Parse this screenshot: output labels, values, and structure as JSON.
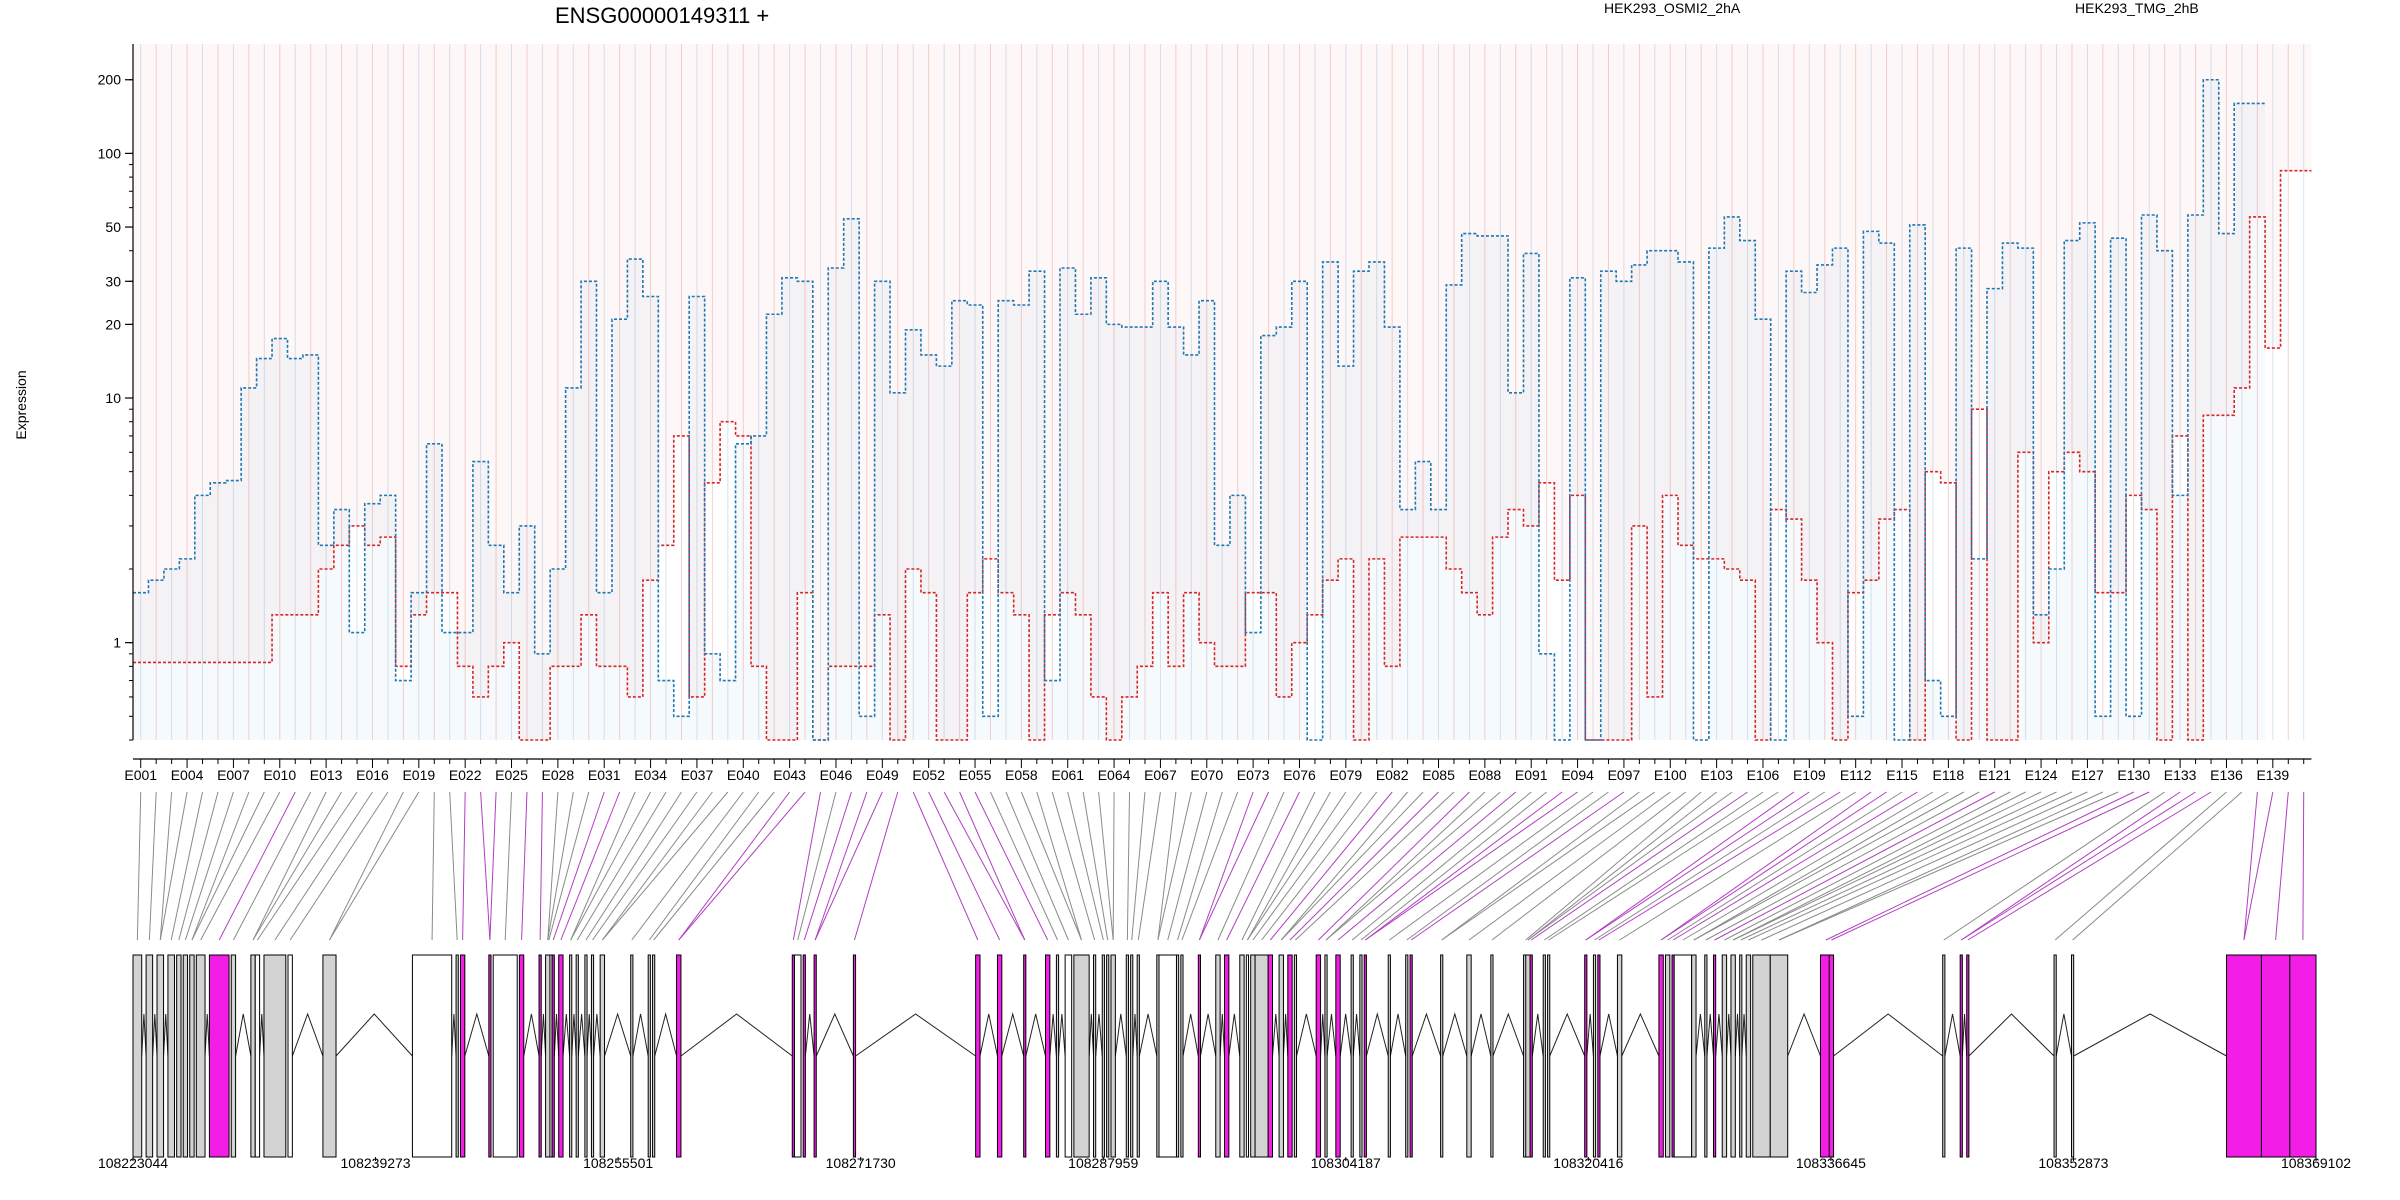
{
  "chart_data": {
    "type": "line",
    "title": "ENSG00000149311 +",
    "ylabel": "Expression",
    "yscale": "log",
    "ylim": [
      0.4,
      280
    ],
    "y_ticks": [
      1,
      10,
      20,
      30,
      50,
      100,
      200
    ],
    "y_tick_labels": [
      "1",
      "10",
      "20",
      "30",
      "50",
      "100",
      "200"
    ],
    "exon_labels": [
      "E001",
      "E004",
      "E007",
      "E010",
      "E013",
      "E016",
      "E019",
      "E022",
      "E025",
      "E028",
      "E031",
      "E034",
      "E037",
      "E040",
      "E043",
      "E046",
      "E049",
      "E052",
      "E055",
      "E058",
      "E061",
      "E064",
      "E067",
      "E070",
      "E073",
      "E076",
      "E079",
      "E082",
      "E085",
      "E088",
      "E091",
      "E094",
      "E097",
      "E100",
      "E103",
      "E106",
      "E109",
      "E112",
      "E115",
      "E118",
      "E121",
      "E124",
      "E127",
      "E130",
      "E133",
      "E136",
      "E139"
    ],
    "exon_count": 141,
    "legend": [
      "HEK293_OSMI2_2hA",
      "HEK293_TMG_2hB"
    ],
    "series": [
      {
        "name": "HEK293_OSMI2_2hA",
        "color": "#d62728",
        "values": [
          0.83,
          0.83,
          0.83,
          0.83,
          0.83,
          0.83,
          0.83,
          0.83,
          0.83,
          1.3,
          1.3,
          1.3,
          2.0,
          2.5,
          3.0,
          2.5,
          2.7,
          0.8,
          1.3,
          1.6,
          1.6,
          0.8,
          0.6,
          0.8,
          1.0,
          0.4,
          0.4,
          0.8,
          0.8,
          1.3,
          0.8,
          0.8,
          0.6,
          1.8,
          2.5,
          7.0,
          0.6,
          4.5,
          8.0,
          7.0,
          0.8,
          0.4,
          0.4,
          1.6,
          0.4,
          0.8,
          0.8,
          0.8,
          1.3,
          0.4,
          2.0,
          1.6,
          0.4,
          0.4,
          1.6,
          2.2,
          1.6,
          1.3,
          0.4,
          1.3,
          1.6,
          1.3,
          0.6,
          0.4,
          0.6,
          0.8,
          1.6,
          0.8,
          1.6,
          1.0,
          0.8,
          0.8,
          1.6,
          1.6,
          0.6,
          1.0,
          1.3,
          1.8,
          2.2,
          0.4,
          2.2,
          0.8,
          2.7,
          2.7,
          2.7,
          2.0,
          1.6,
          1.3,
          2.7,
          3.5,
          3.0,
          4.5,
          1.8,
          4.0,
          0.4,
          0.4,
          0.4,
          3.0,
          0.6,
          4.0,
          2.5,
          2.2,
          2.2,
          2.0,
          1.8,
          0.4,
          3.5,
          3.2,
          1.8,
          1.0,
          0.4,
          1.6,
          1.8,
          3.2,
          3.5,
          0.4,
          5.0,
          4.5,
          0.4,
          9.0,
          0.4,
          0.4,
          6.0,
          1.0,
          5.0,
          6.0,
          5.0,
          1.6,
          1.6,
          4.0,
          3.5,
          0.4,
          7.0,
          0.4,
          8.5,
          8.5,
          11.0,
          55.0,
          16.0,
          85.0,
          85.0
        ],
        "fill": "above",
        "fill_color": "#d62728"
      },
      {
        "name": "HEK293_TMG_2hB",
        "color": "#1f77b4",
        "values": [
          1.6,
          1.8,
          2.0,
          2.2,
          4.0,
          4.5,
          4.6,
          11.0,
          14.5,
          17.5,
          14.5,
          15.0,
          2.5,
          3.5,
          1.1,
          3.7,
          4.0,
          0.7,
          1.6,
          6.5,
          1.1,
          1.1,
          5.5,
          2.5,
          1.6,
          3.0,
          0.9,
          2.0,
          11.0,
          30.0,
          1.6,
          21.0,
          37.0,
          26.0,
          0.7,
          0.5,
          26.0,
          0.9,
          0.7,
          6.5,
          7.0,
          22.0,
          31.0,
          30.0,
          0.4,
          34.0,
          54.0,
          0.5,
          30.0,
          10.5,
          19.0,
          15.0,
          13.5,
          25.0,
          24.0,
          0.5,
          25.0,
          24.0,
          33.0,
          0.7,
          34.0,
          22.0,
          31.0,
          20.0,
          19.5,
          19.5,
          30.0,
          19.5,
          15.0,
          25.0,
          2.5,
          4.0,
          1.1,
          18.0,
          19.5,
          30.0,
          0.4,
          36.0,
          13.5,
          33.0,
          36.0,
          19.5,
          3.5,
          5.5,
          3.5,
          29.0,
          47.0,
          46.0,
          46.0,
          10.5,
          39.0,
          0.9,
          0.4,
          31.0,
          0.4,
          33.0,
          30.0,
          35.0,
          40.0,
          40.0,
          36.0,
          0.4,
          41.0,
          55.0,
          44.0,
          21.0,
          0.4,
          33.0,
          27.0,
          35.0,
          41.0,
          0.5,
          48.0,
          43.0,
          0.4,
          51.0,
          0.7,
          0.5,
          41.0,
          2.2,
          28.0,
          43.0,
          41.0,
          1.3,
          2.0,
          44.0,
          52.0,
          0.5,
          45.0,
          0.5,
          56.0,
          40.0,
          4.0,
          56.0,
          200.0,
          47.0,
          160.0,
          160.0
        ],
        "fill": "below",
        "fill_color": "#1f77b4"
      }
    ],
    "genomic_ticks": [
      "108223044",
      "108239273",
      "108255501",
      "108271730",
      "108287959",
      "108304187",
      "108320416",
      "108336645",
      "108352873",
      "108369102"
    ],
    "exon_blocks": [
      {
        "s": 0,
        "e": 0.004,
        "f": "grey"
      },
      {
        "s": 0.006,
        "e": 0.009,
        "f": "grey"
      },
      {
        "s": 0.011,
        "e": 0.014,
        "f": "grey"
      },
      {
        "s": 0.016,
        "e": 0.019,
        "f": "grey"
      },
      {
        "s": 0.02,
        "e": 0.022,
        "f": "grey"
      },
      {
        "s": 0.023,
        "e": 0.025,
        "f": "grey"
      },
      {
        "s": 0.026,
        "e": 0.028,
        "f": "grey"
      },
      {
        "s": 0.029,
        "e": 0.033,
        "f": "grey"
      },
      {
        "s": 0.035,
        "e": 0.044,
        "f": "magenta"
      },
      {
        "s": 0.045,
        "e": 0.047,
        "f": "grey"
      },
      {
        "s": 0.054,
        "e": 0.056,
        "f": "grey"
      },
      {
        "s": 0.056,
        "e": 0.058,
        "f": "none"
      },
      {
        "s": 0.06,
        "e": 0.07,
        "f": "grey"
      },
      {
        "s": 0.071,
        "e": 0.073,
        "f": "none"
      },
      {
        "s": 0.087,
        "e": 0.093,
        "f": "grey"
      },
      {
        "s": 0.128,
        "e": 0.146,
        "f": "none"
      },
      {
        "s": 0.148,
        "e": 0.149,
        "f": "grey"
      },
      {
        "s": 0.15,
        "e": 0.152,
        "f": "magenta"
      },
      {
        "s": 0.163,
        "e": 0.164,
        "f": "magenta"
      },
      {
        "s": 0.165,
        "e": 0.176,
        "f": "none"
      },
      {
        "s": 0.177,
        "e": 0.179,
        "f": "magenta"
      },
      {
        "s": 0.186,
        "e": 0.187,
        "f": "magenta"
      },
      {
        "s": 0.189,
        "e": 0.191,
        "f": "grey"
      },
      {
        "s": 0.191,
        "e": 0.19,
        "f": "none"
      },
      {
        "s": 0.192,
        "e": 0.193,
        "f": "magenta"
      },
      {
        "s": 0.195,
        "e": 0.197,
        "f": "magenta"
      },
      {
        "s": 0.2,
        "e": 0.201,
        "f": "grey"
      },
      {
        "s": 0.203,
        "e": 0.204,
        "f": "grey"
      },
      {
        "s": 0.207,
        "e": 0.208,
        "f": "grey"
      },
      {
        "s": 0.21,
        "e": 0.211,
        "f": "grey"
      },
      {
        "s": 0.214,
        "e": 0.216,
        "f": "grey"
      },
      {
        "s": 0.228,
        "e": 0.229,
        "f": "grey"
      },
      {
        "s": 0.236,
        "e": 0.237,
        "f": "grey"
      },
      {
        "s": 0.238,
        "e": 0.239,
        "f": "grey"
      },
      {
        "s": 0.249,
        "e": 0.251,
        "f": "magenta"
      },
      {
        "s": 0.302,
        "e": 0.303,
        "f": "magenta"
      },
      {
        "s": 0.303,
        "e": 0.306,
        "f": "none"
      },
      {
        "s": 0.307,
        "e": 0.308,
        "f": "magenta"
      },
      {
        "s": 0.312,
        "e": 0.313,
        "f": "magenta"
      },
      {
        "s": 0.33,
        "e": 0.331,
        "f": "magenta"
      },
      {
        "s": 0.386,
        "e": 0.388,
        "f": "magenta"
      },
      {
        "s": 0.396,
        "e": 0.398,
        "f": "magenta"
      },
      {
        "s": 0.408,
        "e": 0.409,
        "f": "magenta"
      },
      {
        "s": 0.418,
        "e": 0.42,
        "f": "magenta"
      },
      {
        "s": 0.423,
        "e": 0.424,
        "f": "grey"
      },
      {
        "s": 0.427,
        "e": 0.43,
        "f": "none"
      },
      {
        "s": 0.431,
        "e": 0.438,
        "f": "grey"
      },
      {
        "s": 0.44,
        "e": 0.441,
        "f": "grey"
      },
      {
        "s": 0.444,
        "e": 0.445,
        "f": "grey"
      },
      {
        "s": 0.446,
        "e": 0.447,
        "f": "grey"
      },
      {
        "s": 0.448,
        "e": 0.45,
        "f": "grey"
      },
      {
        "s": 0.455,
        "e": 0.456,
        "f": "grey"
      },
      {
        "s": 0.457,
        "e": 0.458,
        "f": "grey"
      },
      {
        "s": 0.46,
        "e": 0.461,
        "f": "grey"
      },
      {
        "s": 0.469,
        "e": 0.47,
        "f": "grey"
      },
      {
        "s": 0.47,
        "e": 0.478,
        "f": "none"
      },
      {
        "s": 0.478,
        "e": 0.479,
        "f": "grey"
      },
      {
        "s": 0.48,
        "e": 0.481,
        "f": "grey"
      },
      {
        "s": 0.488,
        "e": 0.489,
        "f": "magenta"
      },
      {
        "s": 0.496,
        "e": 0.498,
        "f": "grey"
      },
      {
        "s": 0.5,
        "e": 0.502,
        "f": "magenta"
      },
      {
        "s": 0.507,
        "e": 0.509,
        "f": "grey"
      },
      {
        "s": 0.51,
        "e": 0.511,
        "f": "none"
      },
      {
        "s": 0.512,
        "e": 0.514,
        "f": "grey"
      },
      {
        "s": 0.514,
        "e": 0.52,
        "f": "grey"
      },
      {
        "s": 0.52,
        "e": 0.522,
        "f": "magenta"
      },
      {
        "s": 0.525,
        "e": 0.527,
        "f": "grey"
      },
      {
        "s": 0.529,
        "e": 0.531,
        "f": "magenta"
      },
      {
        "s": 0.532,
        "e": 0.533,
        "f": "grey"
      },
      {
        "s": 0.542,
        "e": 0.544,
        "f": "magenta"
      },
      {
        "s": 0.546,
        "e": 0.547,
        "f": "grey"
      },
      {
        "s": 0.551,
        "e": 0.553,
        "f": "magenta"
      },
      {
        "s": 0.558,
        "e": 0.559,
        "f": "grey"
      },
      {
        "s": 0.562,
        "e": 0.563,
        "f": "grey"
      },
      {
        "s": 0.564,
        "e": 0.565,
        "f": "magenta"
      },
      {
        "s": 0.575,
        "e": 0.576,
        "f": "grey"
      },
      {
        "s": 0.583,
        "e": 0.584,
        "f": "grey"
      },
      {
        "s": 0.585,
        "e": 0.586,
        "f": "magenta"
      },
      {
        "s": 0.599,
        "e": 0.6,
        "f": "grey"
      },
      {
        "s": 0.611,
        "e": 0.613,
        "f": "grey"
      },
      {
        "s": 0.622,
        "e": 0.623,
        "f": "grey"
      },
      {
        "s": 0.637,
        "e": 0.639,
        "f": "grey"
      },
      {
        "s": 0.638,
        "e": 0.64,
        "f": "grey"
      },
      {
        "s": 0.64,
        "e": 0.641,
        "f": "magenta"
      },
      {
        "s": 0.646,
        "e": 0.647,
        "f": "grey"
      },
      {
        "s": 0.648,
        "e": 0.649,
        "f": "grey"
      },
      {
        "s": 0.665,
        "e": 0.666,
        "f": "magenta"
      },
      {
        "s": 0.669,
        "e": 0.67,
        "f": "grey"
      },
      {
        "s": 0.671,
        "e": 0.672,
        "f": "magenta"
      },
      {
        "s": 0.68,
        "e": 0.682,
        "f": "grey"
      },
      {
        "s": 0.699,
        "e": 0.701,
        "f": "magenta"
      },
      {
        "s": 0.702,
        "e": 0.704,
        "f": "grey"
      },
      {
        "s": 0.705,
        "e": 0.706,
        "f": "magenta"
      },
      {
        "s": 0.706,
        "e": 0.714,
        "f": "none"
      },
      {
        "s": 0.714,
        "e": 0.716,
        "f": "grey"
      },
      {
        "s": 0.72,
        "e": 0.721,
        "f": "grey"
      },
      {
        "s": 0.724,
        "e": 0.725,
        "f": "magenta"
      },
      {
        "s": 0.728,
        "e": 0.73,
        "f": "grey"
      },
      {
        "s": 0.732,
        "e": 0.734,
        "f": "grey"
      },
      {
        "s": 0.736,
        "e": 0.737,
        "f": "grey"
      },
      {
        "s": 0.739,
        "e": 0.741,
        "f": "grey"
      },
      {
        "s": 0.742,
        "e": 0.75,
        "f": "grey"
      },
      {
        "s": 0.75,
        "e": 0.758,
        "f": "grey"
      },
      {
        "s": 0.773,
        "e": 0.778,
        "f": "magenta"
      },
      {
        "s": 0.777,
        "e": 0.779,
        "f": "magenta"
      },
      {
        "s": 0.829,
        "e": 0.83,
        "f": "grey"
      },
      {
        "s": 0.837,
        "e": 0.838,
        "f": "magenta"
      },
      {
        "s": 0.84,
        "e": 0.841,
        "f": "magenta"
      },
      {
        "s": 0.88,
        "e": 0.881,
        "f": "grey"
      },
      {
        "s": 0.888,
        "e": 0.889,
        "f": "grey"
      },
      {
        "s": 0.959,
        "e": 0.975,
        "f": "magenta"
      },
      {
        "s": 0.975,
        "e": 0.988,
        "f": "magenta"
      },
      {
        "s": 0.988,
        "e": 1.0,
        "f": "magenta"
      }
    ]
  }
}
